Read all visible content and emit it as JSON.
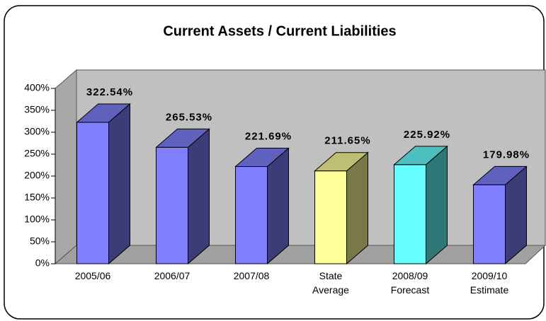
{
  "chart_data": {
    "type": "bar3d",
    "title": "Current Assets / Current Liabilities",
    "categories": [
      "2005/06",
      "2006/07",
      "2007/08",
      "State Average",
      "2008/09 Forecast",
      "2009/10 Estimate"
    ],
    "values": [
      322.54,
      265.53,
      221.69,
      211.65,
      225.92,
      179.98
    ],
    "value_labels": [
      "322.54%",
      "265.53%",
      "221.69%",
      "211.65%",
      "225.92%",
      "179.98%"
    ],
    "colors": [
      "#8080ff",
      "#8080ff",
      "#8080ff",
      "#ffff99",
      "#66ffff",
      "#8080ff"
    ],
    "ylim": [
      0,
      400
    ],
    "yticks": [
      {
        "value": 0,
        "label": "0%"
      },
      {
        "value": 50,
        "label": "50%"
      },
      {
        "value": 100,
        "label": "100%"
      },
      {
        "value": 150,
        "label": "150%"
      },
      {
        "value": 200,
        "label": "200%"
      },
      {
        "value": 250,
        "label": "250%"
      },
      {
        "value": 300,
        "label": "300%"
      },
      {
        "value": 350,
        "label": "350%"
      },
      {
        "value": 400,
        "label": "400%"
      }
    ],
    "grid": false
  }
}
